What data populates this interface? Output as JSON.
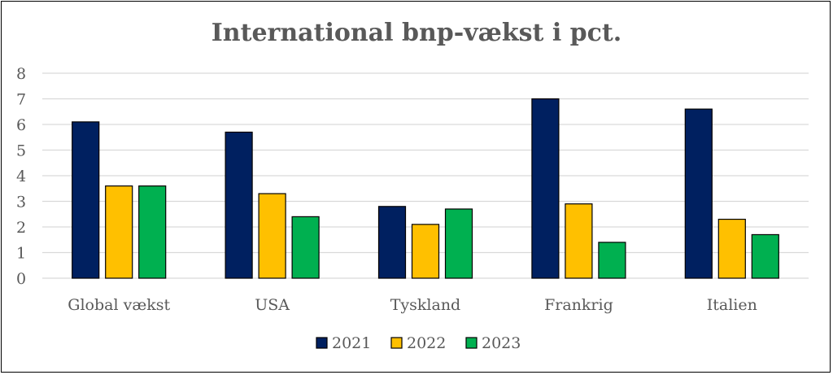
{
  "chart_data": {
    "type": "bar",
    "title": "International bnp-vækst i pct.",
    "xlabel": "",
    "ylabel": "",
    "categories": [
      "Global vækst",
      "USA",
      "Tyskland",
      "Frankrig",
      "Italien"
    ],
    "series": [
      {
        "name": "2021",
        "color": "#002060",
        "values": [
          6.1,
          5.7,
          2.8,
          7.0,
          6.6
        ]
      },
      {
        "name": "2022",
        "color": "#FFC000",
        "values": [
          3.6,
          3.3,
          2.1,
          2.9,
          2.3
        ]
      },
      {
        "name": "2023",
        "color": "#00B050",
        "values": [
          3.6,
          2.4,
          2.7,
          1.4,
          1.7
        ]
      }
    ],
    "ylim": [
      0,
      8
    ],
    "yticks": [
      0,
      1,
      2,
      3,
      4,
      5,
      6,
      7,
      8
    ],
    "grid": true,
    "legend_position": "bottom"
  }
}
